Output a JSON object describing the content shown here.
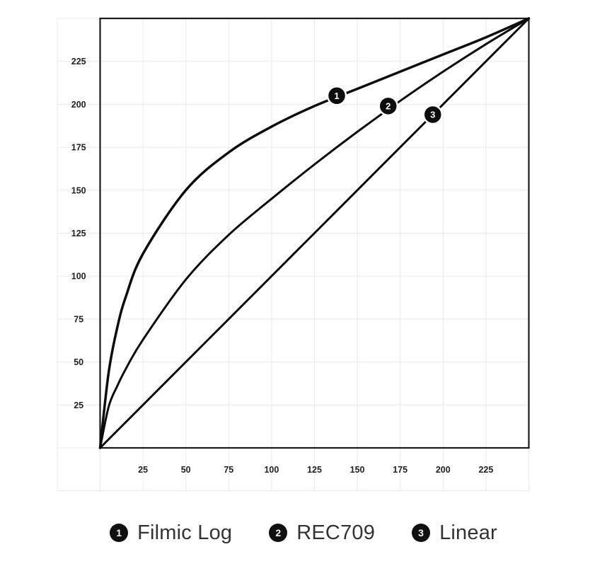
{
  "page": {
    "background": "#ffffff"
  },
  "chart_data": {
    "type": "line",
    "title": "",
    "xlabel": "",
    "ylabel": "",
    "xlim": [
      0,
      250
    ],
    "ylim": [
      0,
      250
    ],
    "x_ticks": [
      25,
      50,
      75,
      100,
      125,
      150,
      175,
      200,
      225
    ],
    "y_ticks": [
      25,
      50,
      75,
      100,
      125,
      150,
      175,
      200,
      225
    ],
    "grid": true,
    "legend_position": "bottom",
    "x": [
      0,
      5,
      10,
      15,
      25,
      50,
      75,
      100,
      125,
      150,
      175,
      200,
      225,
      250
    ],
    "series": [
      {
        "number": "1",
        "name": "Filmic Log",
        "values": [
          0,
          44,
          70,
          88,
          113,
          150,
          172,
          187,
          199,
          209,
          219,
          229,
          239,
          250
        ],
        "marker": {
          "x": 138,
          "y": 205
        },
        "stroke_width": 3.5
      },
      {
        "number": "2",
        "name": "REC709",
        "values": [
          0,
          24,
          36,
          46,
          63,
          98,
          124,
          145,
          165,
          184,
          202,
          219,
          235,
          250
        ],
        "marker": {
          "x": 168,
          "y": 199
        },
        "stroke_width": 3
      },
      {
        "number": "3",
        "name": "Linear",
        "values": [
          0,
          5,
          10,
          15,
          25,
          50,
          75,
          100,
          125,
          150,
          175,
          200,
          225,
          250
        ],
        "marker": {
          "x": 194,
          "y": 194
        },
        "stroke_width": 3
      }
    ]
  },
  "legend": {
    "items": [
      {
        "number": "1",
        "label": "Filmic Log"
      },
      {
        "number": "2",
        "label": "REC709"
      },
      {
        "number": "3",
        "label": "Linear"
      }
    ]
  },
  "colors": {
    "curve": "#0c0c0c",
    "grid_line": "#e9e9e9",
    "plot_border": "#1a1a1a",
    "tick_text": "#222222",
    "marker_fill": "#0e0e0e",
    "marker_ring": "#ffffff",
    "marker_text": "#ffffff"
  }
}
